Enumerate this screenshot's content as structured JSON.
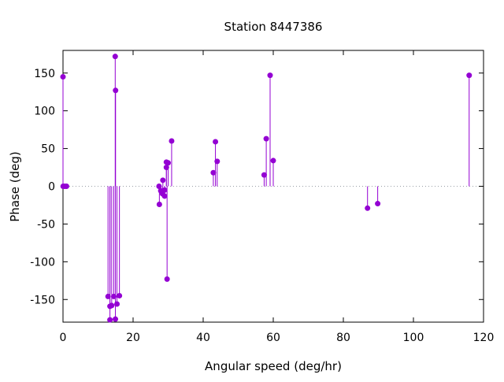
{
  "chart_data": {
    "type": "scatter",
    "style": "impulses-with-points",
    "title": "Station 8447386",
    "xlabel": "Angular speed (deg/hr)",
    "ylabel": "Phase (deg)",
    "xlim": [
      0,
      120
    ],
    "ylim": [
      -180,
      180
    ],
    "xticks": [
      "0",
      "20",
      "40",
      "60",
      "80",
      "100",
      "120"
    ],
    "xtick_values": [
      0,
      20,
      40,
      60,
      80,
      100,
      120
    ],
    "yticks": [
      "150",
      "100",
      "50",
      "0",
      "-50",
      "-100",
      "-150"
    ],
    "ytick_values": [
      150,
      100,
      50,
      0,
      -50,
      -100,
      -150
    ],
    "zero_line": "dotted",
    "grid": false,
    "legend": "none",
    "colors": {
      "series": "#9400d3",
      "axis": "#000000",
      "zero_line": "#9aa0a6"
    },
    "points": [
      {
        "x": 0.0,
        "y": 145
      },
      {
        "x": 0.04,
        "y": 0
      },
      {
        "x": 0.5,
        "y": 0
      },
      {
        "x": 1.0,
        "y": 0
      },
      {
        "x": 12.85,
        "y": -146
      },
      {
        "x": 13.4,
        "y": -159
      },
      {
        "x": 13.4,
        "y": -177
      },
      {
        "x": 13.9,
        "y": -158
      },
      {
        "x": 14.5,
        "y": -146
      },
      {
        "x": 14.9,
        "y": 172
      },
      {
        "x": 14.95,
        "y": -176
      },
      {
        "x": 15.0,
        "y": 127
      },
      {
        "x": 15.4,
        "y": -156
      },
      {
        "x": 16.1,
        "y": -145
      },
      {
        "x": 27.4,
        "y": 0
      },
      {
        "x": 27.9,
        "y": -6
      },
      {
        "x": 27.5,
        "y": -24
      },
      {
        "x": 28.4,
        "y": -10
      },
      {
        "x": 28.5,
        "y": 8
      },
      {
        "x": 29.0,
        "y": -13
      },
      {
        "x": 29.0,
        "y": -5
      },
      {
        "x": 29.5,
        "y": 25
      },
      {
        "x": 29.5,
        "y": 32
      },
      {
        "x": 29.7,
        "y": -123
      },
      {
        "x": 30.0,
        "y": 31
      },
      {
        "x": 31.0,
        "y": 60
      },
      {
        "x": 42.9,
        "y": 18
      },
      {
        "x": 43.5,
        "y": 59
      },
      {
        "x": 44.0,
        "y": 33
      },
      {
        "x": 57.4,
        "y": 15
      },
      {
        "x": 58.0,
        "y": 63
      },
      {
        "x": 59.1,
        "y": 147
      },
      {
        "x": 60.0,
        "y": 34
      },
      {
        "x": 86.9,
        "y": -29
      },
      {
        "x": 89.8,
        "y": -23
      },
      {
        "x": 115.9,
        "y": 147
      }
    ]
  }
}
